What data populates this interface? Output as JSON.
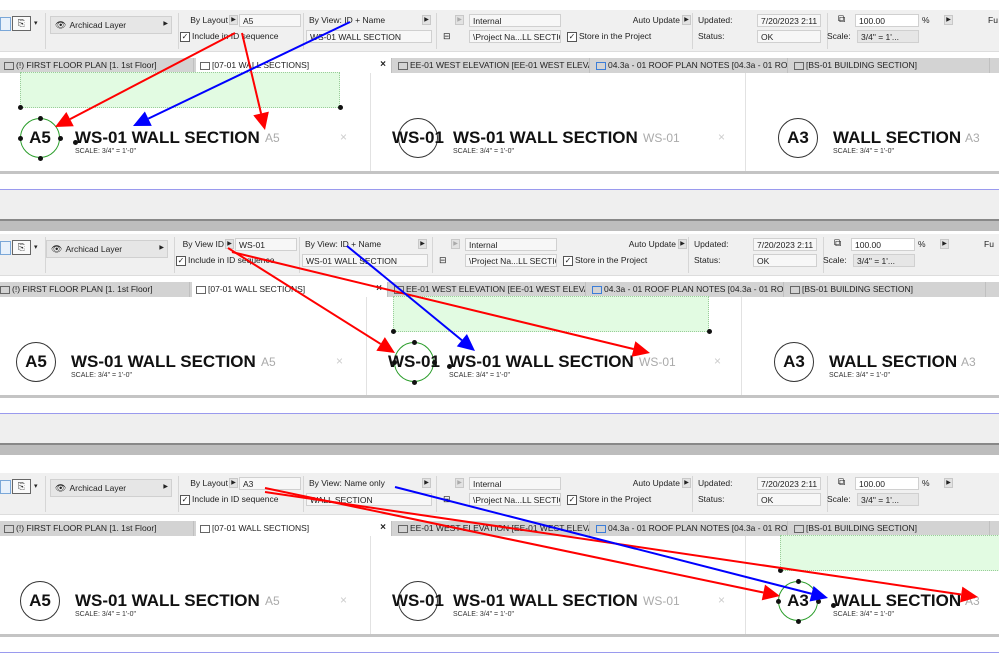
{
  "colors": {
    "arrow_red": "#ff0000",
    "arrow_blue": "#0000ff",
    "selected_marker": "#2a9d2a",
    "selection_fill": "#e2fbe2"
  },
  "panels": [
    {
      "toolbar": {
        "layer": "Archicad Layer",
        "id_mode": "By Layout",
        "id_value": "A5",
        "include_label": "Include in ID sequence",
        "include_checked": true,
        "view_mode": "By View: ID + Name",
        "view_value": "WS-01 WALL SECTION",
        "source": "Internal",
        "path": "\\Project Na...LL SECTION",
        "auto_update": "Auto Update",
        "store_label": "Store in the Project",
        "store_checked": true,
        "updated_label": "Updated:",
        "updated_value": "7/20/2023 2:11 P",
        "status_label": "Status:",
        "status_value": "OK",
        "zoom": "100.00",
        "percent": "%",
        "scale_label": "Scale:",
        "scale_value": "3/4\"  =  1'...",
        "cut_label": "Fu"
      },
      "tabs": [
        "(!) FIRST FLOOR PLAN [1. 1st Floor]",
        "[07-01 WALL SECTIONS]",
        "EE-01 WEST ELEVATION [EE-01 WEST ELEVATI...",
        "04.3a - 01 ROOF PLAN NOTES [04.3a - 01 RO...",
        "[BS-01 BUILDING SECTION]"
      ],
      "active_tab": 1,
      "markers": [
        {
          "circle": "A5",
          "title": "WS-01 WALL SECTION",
          "ref": "A5",
          "scale": "SCALE: 3/4\"  =  1'-0\"",
          "selected": true
        },
        {
          "circle": "WS-01",
          "title": "WS-01 WALL SECTION",
          "ref": "WS-01",
          "scale": "SCALE: 3/4\"  =  1'-0\"",
          "selected": false
        },
        {
          "circle": "A3",
          "title": "WALL SECTION",
          "ref": "A3",
          "scale": "SCALE: 3/4\"  =  1'-0\"",
          "selected": false
        }
      ]
    },
    {
      "toolbar": {
        "layer": "Archicad Layer",
        "id_mode": "By View ID",
        "id_value": "WS-01",
        "include_label": "Include in ID sequence",
        "include_checked": true,
        "view_mode": "By View: ID + Name",
        "view_value": "WS-01 WALL SECTION",
        "source": "Internal",
        "path": "\\Project Na...LL SECTION",
        "auto_update": "Auto Update",
        "store_label": "Store in the Project",
        "store_checked": true,
        "updated_label": "Updated:",
        "updated_value": "7/20/2023 2:11 P",
        "status_label": "Status:",
        "status_value": "OK",
        "zoom": "100.00",
        "percent": "%",
        "scale_label": "Scale:",
        "scale_value": "3/4\"  =  1'...",
        "cut_label": "Fu"
      },
      "tabs": [
        "(!) FIRST FLOOR PLAN [1. 1st Floor]",
        "[07-01 WALL SECTIONS]",
        "EE-01 WEST ELEVATION [EE-01 WEST ELEVATI...",
        "04.3a - 01 ROOF PLAN NOTES [04.3a - 01 RO...",
        "[BS-01 BUILDING SECTION]"
      ],
      "active_tab": 1,
      "markers": [
        {
          "circle": "A5",
          "title": "WS-01 WALL SECTION",
          "ref": "A5",
          "scale": "SCALE: 3/4\"  =  1'-0\"",
          "selected": false
        },
        {
          "circle": "WS-01",
          "title": "WS-01 WALL SECTION",
          "ref": "WS-01",
          "scale": "SCALE: 3/4\"  =  1'-0\"",
          "selected": true
        },
        {
          "circle": "A3",
          "title": "WALL SECTION",
          "ref": "A3",
          "scale": "SCALE: 3/4\"  =  1'-0\"",
          "selected": false
        }
      ]
    },
    {
      "toolbar": {
        "layer": "Archicad Layer",
        "id_mode": "By Layout",
        "id_value": "A3",
        "include_label": "Include in ID sequence",
        "include_checked": true,
        "view_mode": "By View: Name only",
        "view_value": "WALL SECTION",
        "source": "Internal",
        "path": "\\Project Na...LL SECTION",
        "auto_update": "Auto Update",
        "store_label": "Store in the Project",
        "store_checked": true,
        "updated_label": "Updated:",
        "updated_value": "7/20/2023 2:11 P",
        "status_label": "Status:",
        "status_value": "OK",
        "zoom": "100.00",
        "percent": "%",
        "scale_label": "Scale:",
        "scale_value": "3/4\"  =  1'...",
        "cut_label": ""
      },
      "tabs": [
        "(!) FIRST FLOOR PLAN [1. 1st Floor]",
        "[07-01 WALL SECTIONS]",
        "EE-01 WEST ELEVATION [EE-01 WEST ELEVATI...",
        "04.3a - 01 ROOF PLAN NOTES [04.3a - 01 RO...",
        "[BS-01 BUILDING SECTION]"
      ],
      "active_tab": 1,
      "markers": [
        {
          "circle": "A5",
          "title": "WS-01 WALL SECTION",
          "ref": "A5",
          "scale": "SCALE: 3/4\"  =  1'-0\"",
          "selected": false
        },
        {
          "circle": "WS-01",
          "title": "WS-01 WALL SECTION",
          "ref": "WS-01",
          "scale": "SCALE: 3/4\"  =  1'-0\"",
          "selected": false
        },
        {
          "circle": "A3",
          "title": "WALL SECTION",
          "ref": "A3",
          "scale": "SCALE: 3/4\"  =  1'-0\"",
          "selected": true
        }
      ]
    }
  ]
}
